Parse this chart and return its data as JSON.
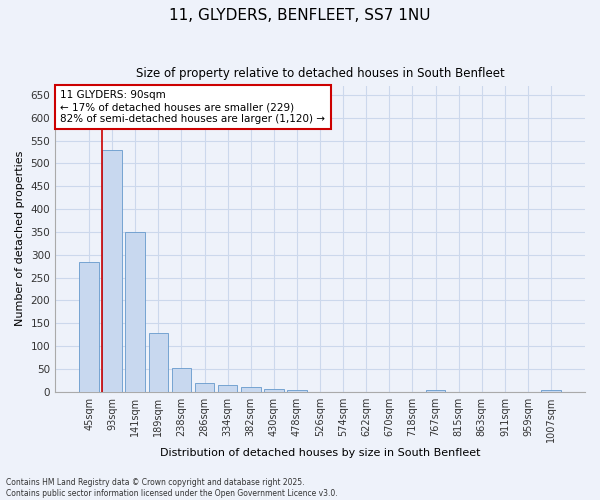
{
  "title": "11, GLYDERS, BENFLEET, SS7 1NU",
  "subtitle": "Size of property relative to detached houses in South Benfleet",
  "xlabel": "Distribution of detached houses by size in South Benfleet",
  "ylabel": "Number of detached properties",
  "annotation_title": "11 GLYDERS: 90sqm",
  "annotation_line1": "← 17% of detached houses are smaller (229)",
  "annotation_line2": "82% of semi-detached houses are larger (1,120) →",
  "footer_line1": "Contains HM Land Registry data © Crown copyright and database right 2025.",
  "footer_line2": "Contains public sector information licensed under the Open Government Licence v3.0.",
  "categories": [
    "45sqm",
    "93sqm",
    "141sqm",
    "189sqm",
    "238sqm",
    "286sqm",
    "334sqm",
    "382sqm",
    "430sqm",
    "478sqm",
    "526sqm",
    "574sqm",
    "622sqm",
    "670sqm",
    "718sqm",
    "767sqm",
    "815sqm",
    "863sqm",
    "911sqm",
    "959sqm",
    "1007sqm"
  ],
  "values": [
    285,
    530,
    350,
    128,
    52,
    20,
    15,
    10,
    5,
    4,
    0,
    0,
    0,
    0,
    0,
    3,
    0,
    0,
    0,
    0,
    3
  ],
  "bar_color": "#c8d8ef",
  "bar_edge_color": "#6699cc",
  "red_line_color": "#cc0000",
  "annotation_box_edge_color": "#cc0000",
  "annotation_box_fill": "#ffffff",
  "grid_color": "#ccd8ec",
  "background_color": "#eef2fa",
  "ylim_max": 670,
  "ytick_step": 50
}
